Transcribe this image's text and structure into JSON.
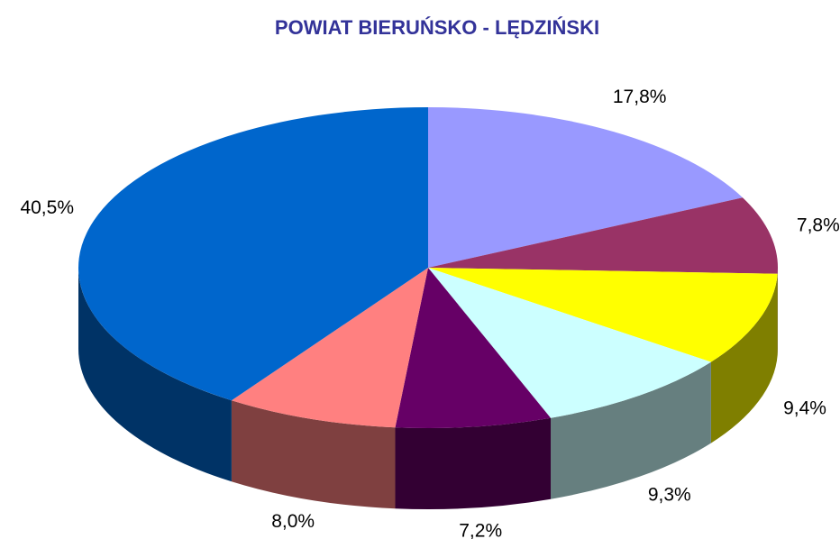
{
  "chart_data": {
    "type": "pie",
    "title": "POWIAT BIERUŃSKO - LĘDZIŃSKI",
    "values": [
      17.8,
      7.8,
      9.4,
      9.3,
      7.2,
      8.0,
      40.5
    ],
    "value_labels": [
      "17,8%",
      "7,8%",
      "9,4%",
      "9,3%",
      "7,2%",
      "8,0%",
      "40,5%"
    ],
    "colors": [
      "#9999ff",
      "#993366",
      "#ffff00",
      "#ccffff",
      "#660066",
      "#ff8080",
      "#0066cc"
    ]
  }
}
